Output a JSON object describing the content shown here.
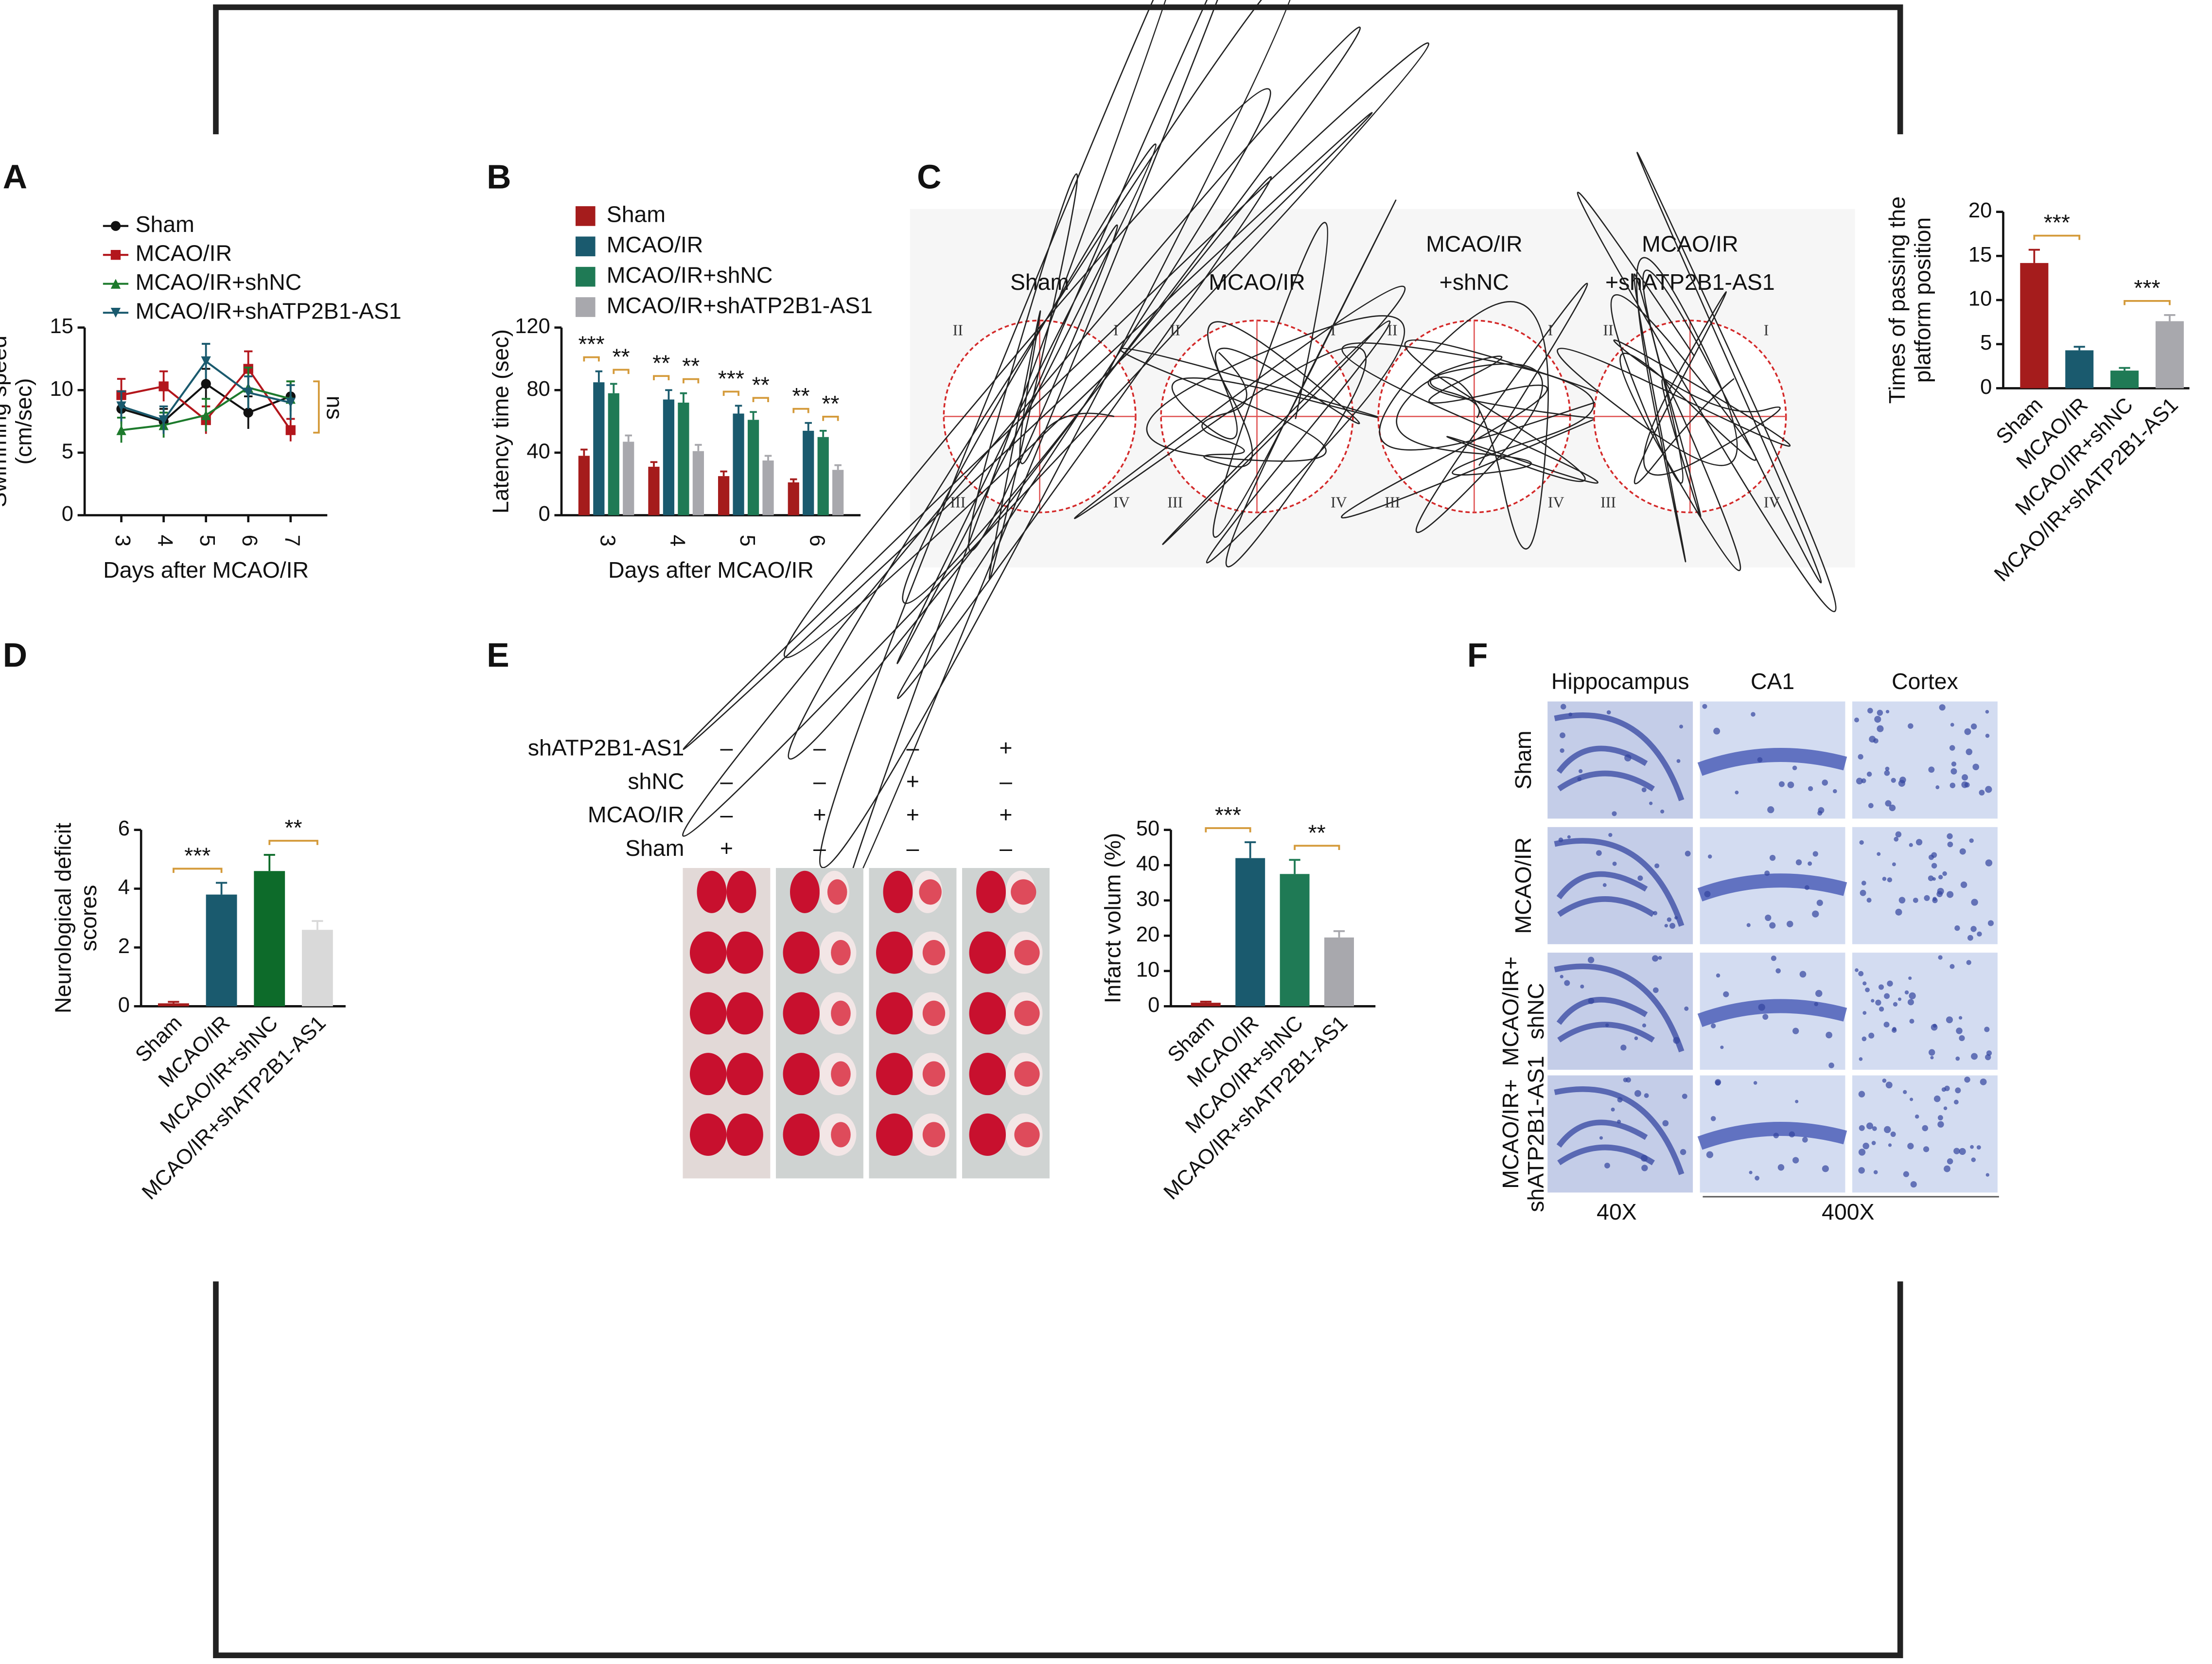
{
  "panels": [
    "A",
    "B",
    "C",
    "D",
    "E",
    "F"
  ],
  "maze": {
    "titles": [
      [
        "Sham"
      ],
      [
        "MCAO/IR"
      ],
      [
        "MCAO/IR",
        "+shNC"
      ],
      [
        "MCAO/IR",
        "+shATP2B1-AS1"
      ]
    ],
    "quadrants": [
      "I",
      "II",
      "III",
      "IV"
    ]
  },
  "ttc": {
    "rows": [
      {
        "label": "shATP2B1-AS1",
        "signs": [
          "–",
          "–",
          "–",
          "+"
        ]
      },
      {
        "label": "shNC",
        "signs": [
          "–",
          "–",
          "+",
          "–"
        ]
      },
      {
        "label": "MCAO/IR",
        "signs": [
          "–",
          "+",
          "+",
          "+"
        ]
      },
      {
        "label": "Sham",
        "signs": [
          "+",
          "–",
          "–",
          "–"
        ]
      }
    ]
  },
  "histology": {
    "columns": [
      "Hippocampus",
      "CA1",
      "Cortex"
    ],
    "rows": [
      [
        "Sham"
      ],
      [
        "MCAO/IR"
      ],
      [
        "MCAO/IR+",
        "shNC"
      ],
      [
        "MCAO/IR+",
        "shATP2B1-AS1"
      ]
    ],
    "magnifications": [
      "40X",
      "400X"
    ]
  },
  "chart_data": [
    {
      "type": "line",
      "categories": [
        "3",
        "4",
        "5",
        "6",
        "7"
      ],
      "xlabel": "Days after MCAO/IR",
      "ylabel": [
        "Swimming speed",
        "(cm/sec)"
      ],
      "ylim": [
        0,
        15
      ],
      "yticks": [
        0,
        5,
        10,
        15
      ],
      "annotation": "ns",
      "series": [
        {
          "name": "Sham",
          "color": "#111111",
          "marker": "circle",
          "values": [
            8.5,
            7.5,
            10.5,
            8.2,
            9.5
          ],
          "errors": [
            1.2,
            1.0,
            1.2,
            1.3,
            1.2
          ]
        },
        {
          "name": "MCAO/IR",
          "color": "#b3161c",
          "marker": "square",
          "values": [
            9.6,
            10.3,
            7.6,
            11.7,
            6.8
          ],
          "errors": [
            1.3,
            1.2,
            1.1,
            1.4,
            0.9
          ]
        },
        {
          "name": "MCAO/IR+shNC",
          "color": "#1d7a2c",
          "marker": "triangle",
          "values": [
            6.8,
            7.2,
            8.0,
            10.2,
            9.3
          ],
          "errors": [
            1.0,
            1.0,
            1.3,
            1.6,
            1.4
          ]
        },
        {
          "name": "MCAO/IR+shATP2B1-AS1",
          "color": "#1a5a6e",
          "marker": "triangle-down",
          "values": [
            8.7,
            7.6,
            12.3,
            9.8,
            9.0
          ],
          "errors": [
            1.2,
            1.1,
            1.4,
            1.3,
            1.4
          ]
        }
      ]
    },
    {
      "type": "grouped-bar",
      "categories": [
        "3",
        "4",
        "5",
        "6"
      ],
      "xlabel": "Days after MCAO/IR",
      "ylabel": [
        "Latency time (sec)"
      ],
      "ylim": [
        0,
        120
      ],
      "yticks": [
        0,
        40,
        80,
        120
      ],
      "significance": [
        [
          "***",
          "**"
        ],
        [
          "**",
          "**"
        ],
        [
          "***",
          "**"
        ],
        [
          "**",
          "**"
        ]
      ],
      "series": [
        {
          "name": "Sham",
          "color": "#a51c1c",
          "values": [
            38,
            31,
            25,
            21
          ],
          "errors": [
            4,
            3,
            3,
            2
          ]
        },
        {
          "name": "MCAO/IR",
          "color": "#1a5a6e",
          "values": [
            85,
            74,
            65,
            54
          ],
          "errors": [
            7,
            6,
            5,
            5
          ]
        },
        {
          "name": "MCAO/IR+shNC",
          "color": "#1f7a55",
          "values": [
            78,
            72,
            61,
            50
          ],
          "errors": [
            6,
            6,
            5,
            4
          ]
        },
        {
          "name": "MCAO/IR+shATP2B1-AS1",
          "color": "#a8a8ad",
          "values": [
            47,
            41,
            35,
            29
          ],
          "errors": [
            4,
            4,
            3,
            3
          ]
        }
      ]
    },
    {
      "type": "bar",
      "categories": [
        "Sham",
        "MCAO/IR",
        "MCAO/IR+shNC",
        "MCAO/IR+shATP2B1-AS1"
      ],
      "ylabel": [
        "Times of passing the",
        "platform position"
      ],
      "values": [
        14.2,
        4.3,
        2.0,
        7.6
      ],
      "errors": [
        1.5,
        0.4,
        0.3,
        0.7
      ],
      "colors": [
        "#a51c1c",
        "#1a5a6e",
        "#1f7a55",
        "#a8a8ad"
      ],
      "ylim": [
        0,
        20
      ],
      "yticks": [
        0,
        5,
        10,
        15,
        20
      ],
      "significance": [
        "***",
        "***"
      ]
    },
    {
      "type": "bar",
      "categories": [
        "Sham",
        "MCAO/IR",
        "MCAO/IR+shNC",
        "MCAO/IR+shATP2B1-AS1"
      ],
      "ylabel": [
        "Neurological deficit",
        "scores"
      ],
      "values": [
        0.1,
        3.8,
        4.6,
        2.6
      ],
      "errors": [
        0.05,
        0.4,
        0.55,
        0.3
      ],
      "colors": [
        "#a51c1c",
        "#1a5a6e",
        "#0d6b2a",
        "#d9d9d9"
      ],
      "ylim": [
        0,
        6
      ],
      "yticks": [
        0,
        2,
        4,
        6
      ],
      "significance": [
        "***",
        "**"
      ]
    },
    {
      "type": "bar",
      "categories": [
        "Sham",
        "MCAO/IR",
        "MCAO/IR+shNC",
        "MCAO/IR+shATP2B1-AS1"
      ],
      "ylabel": [
        "Infarct volum (%)"
      ],
      "values": [
        1,
        42,
        37.5,
        19.5
      ],
      "errors": [
        0.3,
        4.5,
        4,
        1.8
      ],
      "colors": [
        "#a51c1c",
        "#1a5a6e",
        "#1f7a55",
        "#a8a8ad"
      ],
      "ylim": [
        0,
        50
      ],
      "yticks": [
        0,
        10,
        20,
        30,
        40,
        50
      ],
      "significance": [
        "***",
        "**"
      ]
    }
  ]
}
